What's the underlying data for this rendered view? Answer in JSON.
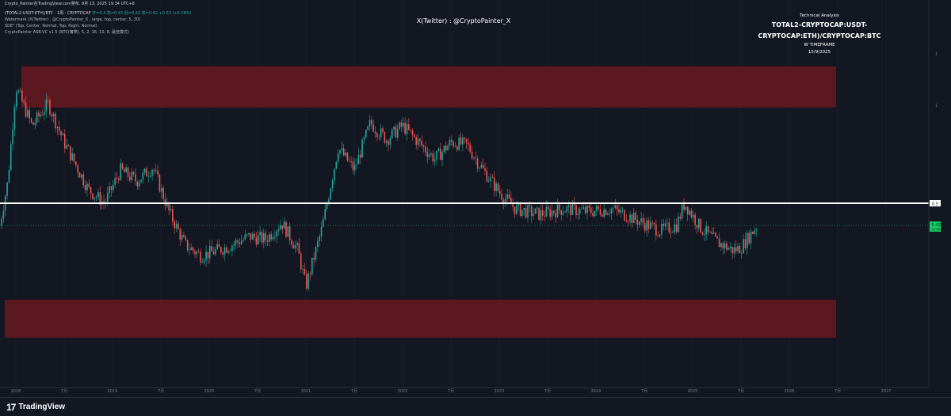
{
  "header": {
    "top_strip": "Crypto_Painter在TradingView.com発布, 9月 13, 2025 19:34 UTC+8",
    "legend_line1_symbol": "(TOTAL2-USDT-ETH)/BTC · 1周 · CRYPTOCAP",
    "legend_line1_values": "开=0.4  高=0.43  低=0.42  收=0.42  +0.02 (+6.28%)",
    "legend_line2": "Watermark (X(Twitter) : @CryptoPainter_X , large, top, center, 5, 30)",
    "legend_line3": "SDE² (Top, Center, Normal, Top, Right, Normal)",
    "legend_line4": "CryptoPainter ASR-VC v1.5 (BTC(實際), 5, 2, 16, 10, 8, 最佳模式)"
  },
  "watermark": {
    "text": "X(Twitter) : @CryptoPainter_X"
  },
  "technical_analysis": {
    "title": "Technical Analysis",
    "symbol": "TOTAL2-CRYPTOCAP:USDT-CRYPTOCAP:ETH)/CRYPTOCAP:BTC",
    "timeframe": "W TIMEFRAME",
    "date": "15/9/2025"
  },
  "footer": {
    "brand": "TradingView",
    "logo_mark": "17"
  },
  "colors": {
    "background": "#131722",
    "zone": "#5c1820",
    "up": "#26a69a",
    "down": "#ef5350",
    "price_label": "#17c964",
    "level_line": "#ffffff"
  },
  "chart_data": {
    "type": "candlestick",
    "title": "",
    "xlabel": "",
    "ylabel": "",
    "x_ticks": [
      "2018",
      "7月",
      "2019",
      "7月",
      "2020",
      "7月",
      "2021",
      "7月",
      "2022",
      "7月",
      "2023",
      "7月",
      "2024",
      "7月",
      "2025",
      "7月",
      "2026",
      "7月",
      "2027"
    ],
    "x_tick_dates": [
      "2018-01",
      "2018-07",
      "2019-01",
      "2019-07",
      "2020-01",
      "2020-07",
      "2021-01",
      "2021-07",
      "2022-01",
      "2022-07",
      "2023-01",
      "2023-07",
      "2024-01",
      "2024-07",
      "2025-01",
      "2025-07",
      "2026-01",
      "2026-07",
      "2027-01"
    ],
    "y_axis_labels": [
      "1",
      "1"
    ],
    "level_line": {
      "value": 0.5,
      "label": "0.5"
    },
    "last_price": {
      "value": 0.42,
      "label": "0.42",
      "countdown": "1d 9h"
    },
    "zones": [
      {
        "name": "upper-resistance-zone",
        "from": "2018-01",
        "to": "2026-09",
        "note": "upper red band"
      },
      {
        "name": "lower-support-zone",
        "from": "2017-11",
        "to": "2026-09",
        "note": "lower red band"
      }
    ],
    "price_path": [
      {
        "date": "2017-11",
        "value": 0.42
      },
      {
        "date": "2017-12",
        "value": 0.58
      },
      {
        "date": "2018-01",
        "value": 0.92
      },
      {
        "date": "2018-03",
        "value": 0.78
      },
      {
        "date": "2018-05",
        "value": 0.86
      },
      {
        "date": "2018-07",
        "value": 0.72
      },
      {
        "date": "2018-10",
        "value": 0.55
      },
      {
        "date": "2018-12",
        "value": 0.5
      },
      {
        "date": "2019-02",
        "value": 0.62
      },
      {
        "date": "2019-04",
        "value": 0.58
      },
      {
        "date": "2019-06",
        "value": 0.63
      },
      {
        "date": "2019-08",
        "value": 0.47
      },
      {
        "date": "2019-10",
        "value": 0.35
      },
      {
        "date": "2019-12",
        "value": 0.31
      },
      {
        "date": "2020-03",
        "value": 0.34
      },
      {
        "date": "2020-06",
        "value": 0.38
      },
      {
        "date": "2020-08",
        "value": 0.37
      },
      {
        "date": "2020-10",
        "value": 0.43
      },
      {
        "date": "2020-12",
        "value": 0.33
      },
      {
        "date": "2021-01",
        "value": 0.2
      },
      {
        "date": "2021-03",
        "value": 0.41
      },
      {
        "date": "2021-05",
        "value": 0.7
      },
      {
        "date": "2021-07",
        "value": 0.62
      },
      {
        "date": "2021-09",
        "value": 0.79
      },
      {
        "date": "2021-11",
        "value": 0.73
      },
      {
        "date": "2022-01",
        "value": 0.78
      },
      {
        "date": "2022-03",
        "value": 0.72
      },
      {
        "date": "2022-05",
        "value": 0.66
      },
      {
        "date": "2022-07",
        "value": 0.72
      },
      {
        "date": "2022-09",
        "value": 0.71
      },
      {
        "date": "2022-11",
        "value": 0.62
      },
      {
        "date": "2023-01",
        "value": 0.54
      },
      {
        "date": "2023-03",
        "value": 0.48
      },
      {
        "date": "2023-06",
        "value": 0.46
      },
      {
        "date": "2023-09",
        "value": 0.48
      },
      {
        "date": "2023-12",
        "value": 0.47
      },
      {
        "date": "2024-03",
        "value": 0.48
      },
      {
        "date": "2024-06",
        "value": 0.44
      },
      {
        "date": "2024-09",
        "value": 0.4
      },
      {
        "date": "2024-11",
        "value": 0.42
      },
      {
        "date": "2024-12",
        "value": 0.5
      },
      {
        "date": "2025-02",
        "value": 0.41
      },
      {
        "date": "2025-04",
        "value": 0.36
      },
      {
        "date": "2025-06",
        "value": 0.33
      },
      {
        "date": "2025-07",
        "value": 0.34
      },
      {
        "date": "2025-09",
        "value": 0.42
      }
    ]
  }
}
